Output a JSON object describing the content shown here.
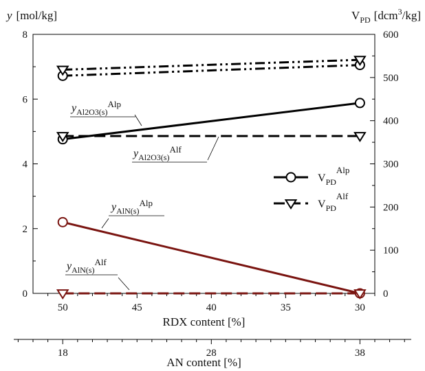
{
  "chart_data": {
    "type": "line",
    "title": "",
    "y_left": {
      "symbol": "y",
      "unit": "[mol/kg]",
      "ticks": [
        0,
        2,
        4,
        6,
        8
      ],
      "range": [
        0,
        8
      ]
    },
    "y_right": {
      "symbol": "V",
      "sub": "PD",
      "unit_pre": "[dcm",
      "unit_sup": "3",
      "unit_post": "/kg]",
      "ticks": [
        0,
        100,
        200,
        300,
        400,
        500,
        600
      ],
      "range": [
        0,
        600
      ]
    },
    "x_primary": {
      "label": "RDX content [%]",
      "ticks": [
        50,
        45,
        40,
        35,
        30
      ],
      "range": [
        52,
        29
      ]
    },
    "x_secondary": {
      "label": "AN content [%]",
      "ticks": [
        18,
        28,
        38
      ],
      "range": [
        18,
        38
      ]
    },
    "series": [
      {
        "axis": "right",
        "marker": "circle",
        "style": "dashdotdot",
        "color": "#000000",
        "x": [
          50,
          30
        ],
        "values": [
          504,
          529
        ]
      },
      {
        "axis": "right",
        "marker": "triangle",
        "style": "dashdotdot",
        "color": "#000000",
        "x": [
          50,
          30
        ],
        "values": [
          518,
          541
        ]
      },
      {
        "axis": "left",
        "marker": "circle",
        "style": "solid",
        "color": "#000000",
        "x": [
          50,
          30
        ],
        "values": [
          4.76,
          5.88
        ]
      },
      {
        "axis": "left",
        "marker": "triangle",
        "style": "dashed",
        "color": "#000000",
        "x": [
          50,
          30
        ],
        "values": [
          4.86,
          4.86
        ]
      },
      {
        "axis": "left",
        "marker": "circle",
        "style": "solid",
        "color": "#7a1410",
        "x": [
          50,
          30
        ],
        "values": [
          2.2,
          0.0
        ]
      },
      {
        "axis": "left",
        "marker": "triangle",
        "style": "dashed",
        "color": "#7a1410",
        "x": [
          50,
          30
        ],
        "values": [
          0.0,
          0.0
        ]
      }
    ],
    "annotations": [
      {
        "base": "y",
        "sub": "Al2O3(s)",
        "sup": "Alp"
      },
      {
        "base": "y",
        "sub": "Al2O3(s)",
        "sup": "Alf"
      },
      {
        "base": "y",
        "sub": "AlN(s)",
        "sup": "Alp"
      },
      {
        "base": "y",
        "sub": "AlN(s)",
        "sup": "Alf"
      }
    ],
    "legend": {
      "position": "right-middle",
      "entries": [
        {
          "base": "V",
          "sub": "PD",
          "sup": "Alp",
          "marker": "circle",
          "style": "solid"
        },
        {
          "base": "V",
          "sub": "PD",
          "sup": "Alf",
          "marker": "triangle",
          "style": "dashed"
        }
      ]
    },
    "grid": false
  }
}
